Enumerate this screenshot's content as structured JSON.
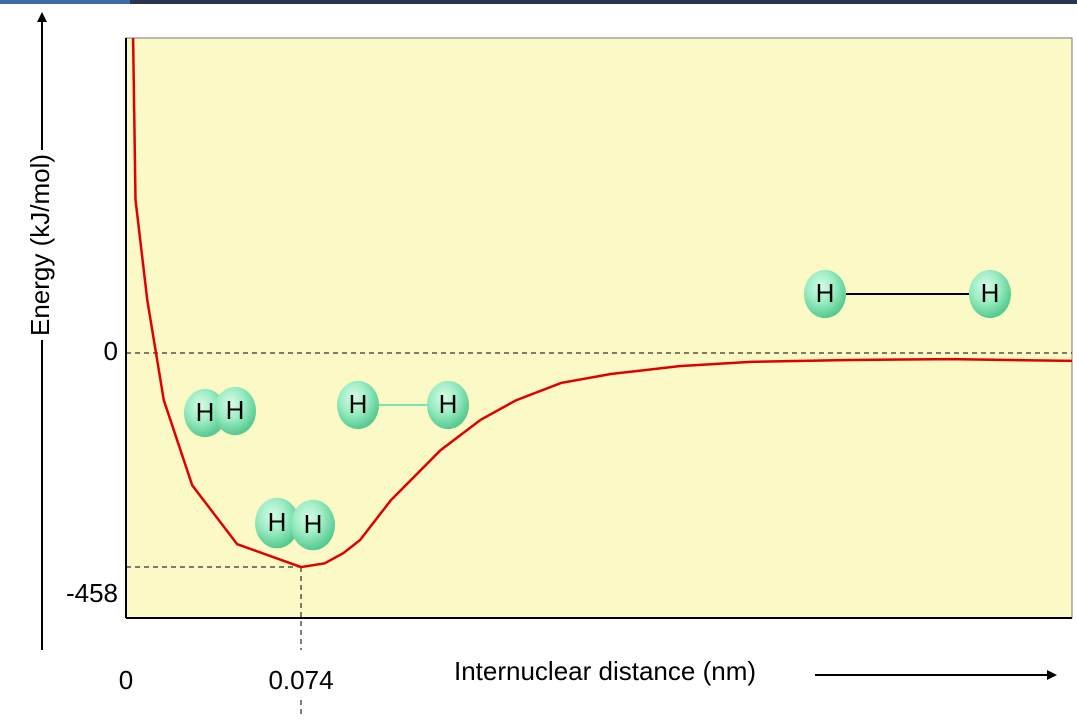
{
  "chart_data": {
    "type": "line",
    "xlabel": "Internuclear distance (nm)",
    "ylabel": "Energy (kJ/mol)",
    "x": [
      0.003,
      0.004,
      0.009,
      0.016,
      0.028,
      0.047,
      0.074,
      0.084,
      0.092,
      0.099,
      0.112,
      0.133,
      0.15,
      0.165,
      0.184,
      0.205,
      0.234,
      0.264,
      0.306,
      0.349,
      0.4
    ],
    "values": [
      674,
      328,
      113,
      -101,
      -283,
      -409,
      -458,
      -450,
      -428,
      -400,
      -315,
      -208,
      -143,
      -101,
      -64,
      -45,
      -28,
      -19,
      -15,
      -13,
      -17
    ],
    "color": "#e00000",
    "xlim": [
      0,
      0.4
    ],
    "xticks": [
      0,
      0.074
    ],
    "ylim": [
      -567,
      674
    ],
    "yticks": [
      0,
      -458
    ],
    "molecule_labels": [
      [
        "H",
        "H"
      ],
      [
        "H",
        "H"
      ],
      [
        "H",
        "H"
      ],
      [
        "H",
        "H"
      ]
    ]
  }
}
